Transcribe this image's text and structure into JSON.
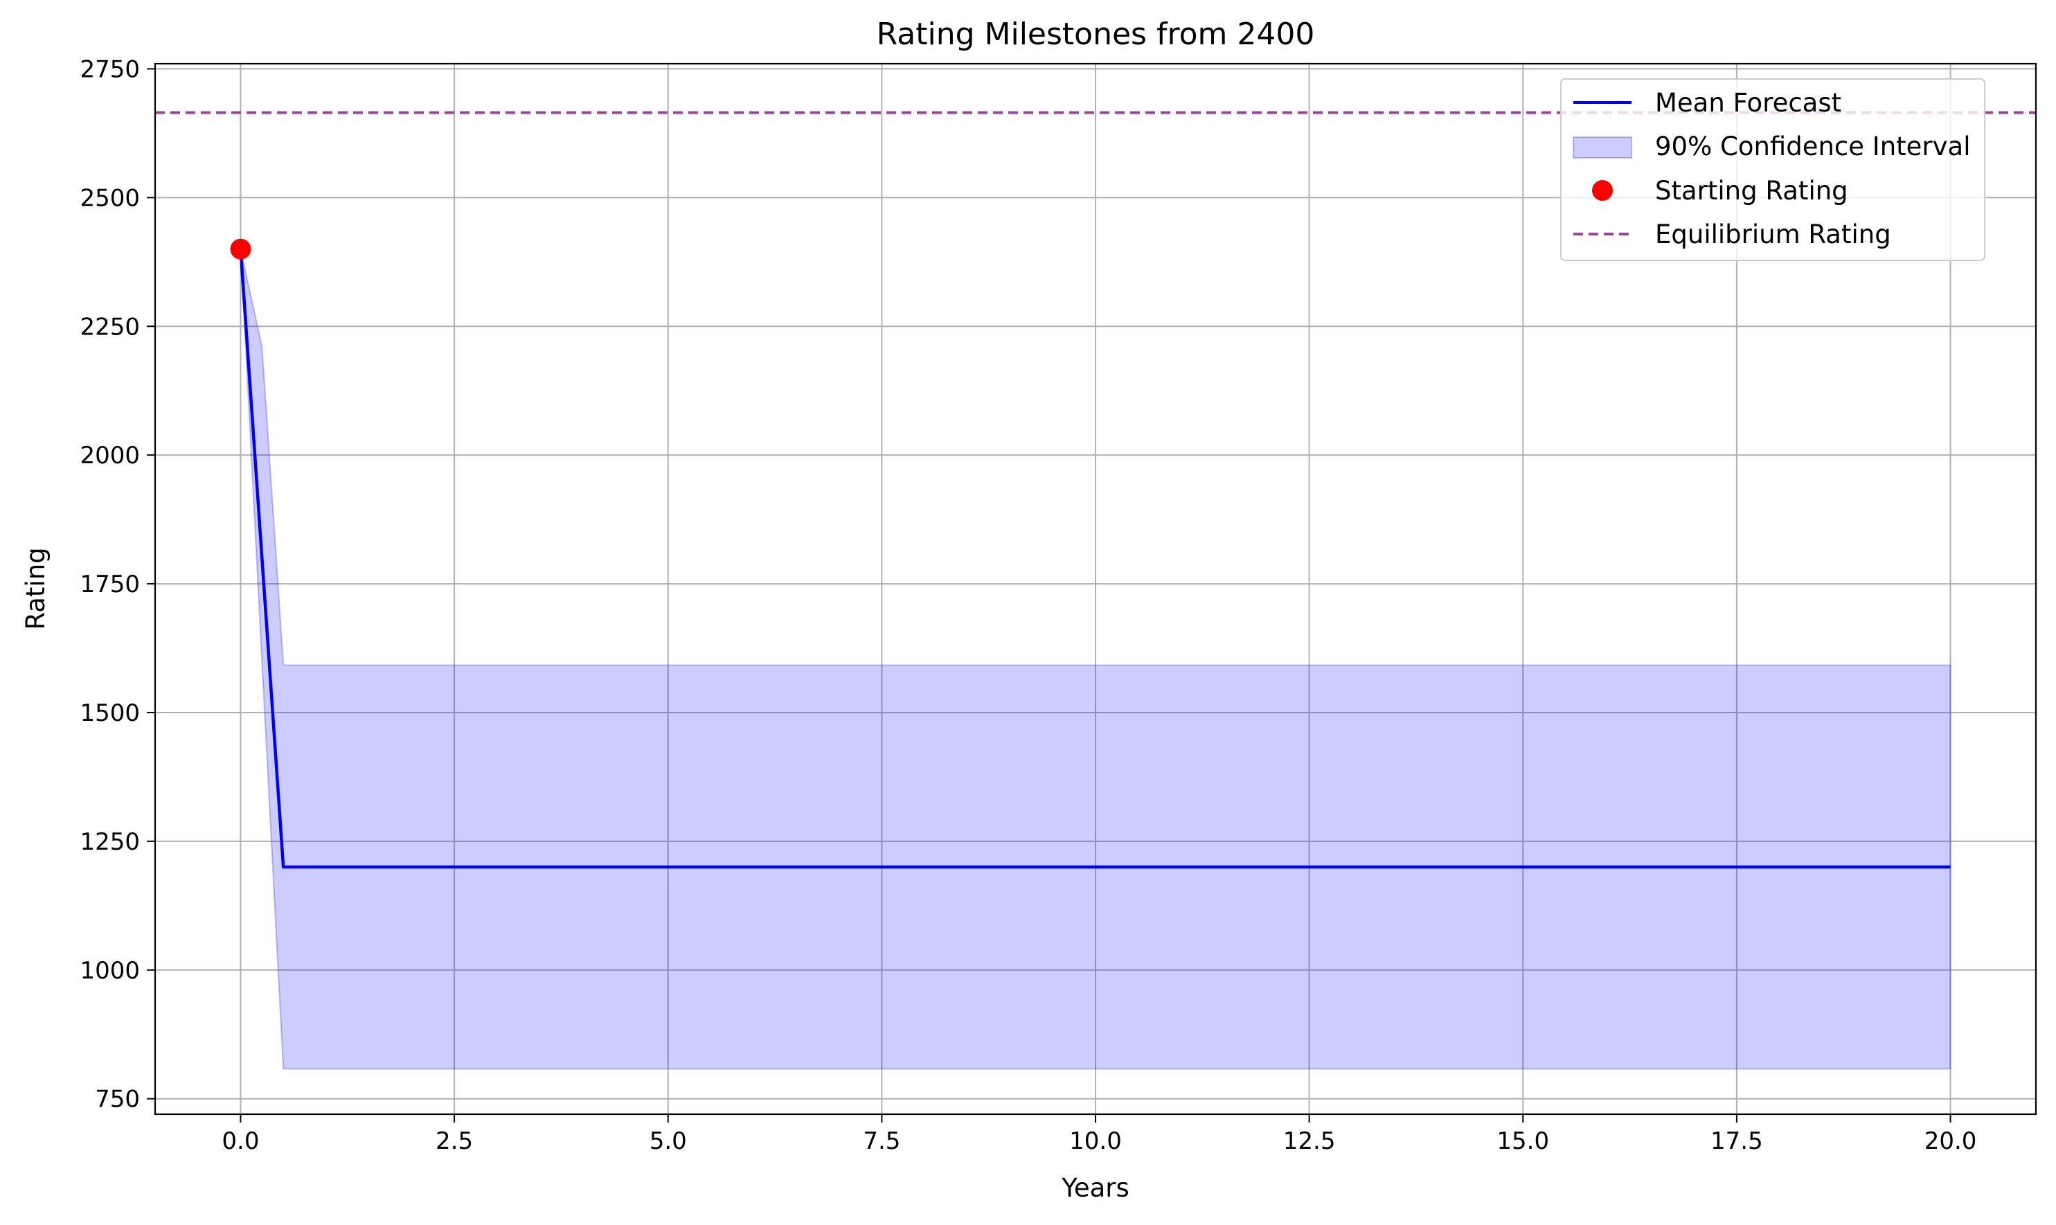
{
  "chart_data": {
    "type": "line",
    "title": "Rating Milestones from 2400",
    "xlabel": "Years",
    "ylabel": "Rating",
    "xlim": [
      -1.0,
      21.0
    ],
    "ylim": [
      720,
      2760
    ],
    "grid": true,
    "legend_position": "top-right",
    "x_ticks": [
      0.0,
      2.5,
      5.0,
      7.5,
      10.0,
      12.5,
      15.0,
      17.5,
      20.0
    ],
    "x_tick_labels": [
      "0.0",
      "2.5",
      "5.0",
      "7.5",
      "10.0",
      "12.5",
      "15.0",
      "17.5",
      "20.0"
    ],
    "y_ticks": [
      750,
      1000,
      1250,
      1500,
      1750,
      2000,
      2250,
      2500,
      2750
    ],
    "y_tick_labels": [
      "750",
      "1000",
      "1250",
      "1500",
      "1750",
      "2000",
      "2250",
      "2500",
      "2750"
    ],
    "series": [
      {
        "name": "Mean Forecast",
        "kind": "line",
        "color": "#0000ff",
        "x": [
          0.0,
          0.5,
          20.0
        ],
        "y": [
          2400,
          1200,
          1200
        ]
      },
      {
        "name": "90% Confidence Interval",
        "kind": "band",
        "color": "#0000ff",
        "x": [
          0.0,
          0.25,
          0.5,
          20.0
        ],
        "upper": [
          2400,
          2210,
          1592,
          1592
        ],
        "lower": [
          2400,
          1600,
          808,
          808
        ]
      },
      {
        "name": "Starting Rating",
        "kind": "scatter",
        "color": "#ff0000",
        "x": [
          0.0
        ],
        "y": [
          2400
        ]
      },
      {
        "name": "Equilibrium Rating",
        "kind": "hline",
        "color": "#a040a0",
        "y": 2665
      }
    ]
  }
}
